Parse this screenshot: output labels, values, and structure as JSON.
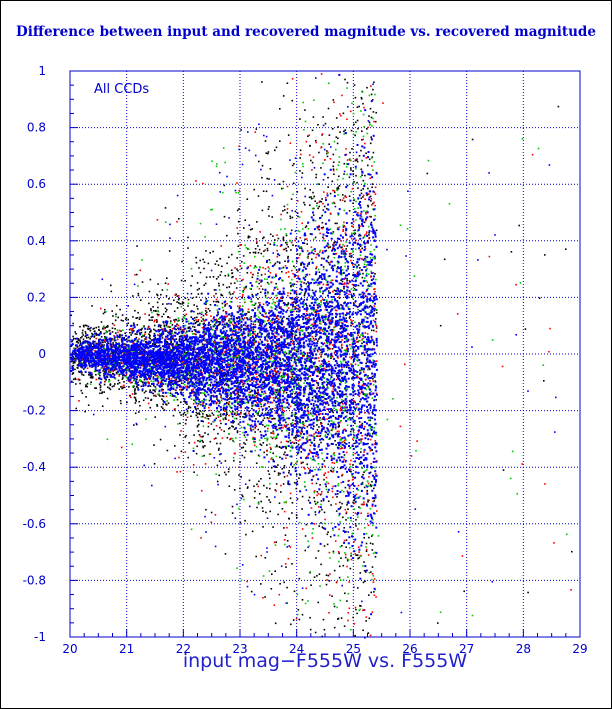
{
  "page": {
    "title": "Difference between input and recovered magnitude vs. recovered magnitude"
  },
  "chart_data": {
    "type": "scatter",
    "title": "Difference between input and recovered magnitude vs. recovered magnitude",
    "xlabel": "input mag−F555W vs. F555W",
    "ylabel": "",
    "annotation": "All CCDs",
    "xlim": [
      20,
      29
    ],
    "ylim": [
      -1,
      1
    ],
    "x_ticks": [
      20,
      21,
      22,
      23,
      24,
      25,
      26,
      27,
      28,
      29
    ],
    "y_ticks": [
      -1,
      -0.8,
      -0.6,
      -0.4,
      -0.2,
      0,
      0.2,
      0.4,
      0.6,
      0.8,
      1
    ],
    "grid": true,
    "grid_style": "dotted",
    "colors": {
      "axis": "#0000cc",
      "grid": "#0000cc",
      "title": "#0000cc"
    },
    "series": [
      {
        "color": "#000000",
        "description_points": "broad cloud, scatter increasing with magnitude"
      },
      {
        "color": "#ff0000"
      },
      {
        "color": "#00cc00"
      },
      {
        "color": "#0000ff"
      }
    ],
    "approximate_trend": {
      "x": [
        20.0,
        21.0,
        22.0,
        23.0,
        24.0,
        24.5,
        25.0,
        25.4
      ],
      "center_y": [
        0.0,
        -0.01,
        -0.02,
        -0.03,
        -0.02,
        -0.01,
        0.0,
        0.0
      ],
      "spread_y": [
        0.03,
        0.05,
        0.08,
        0.13,
        0.22,
        0.3,
        0.4,
        0.45
      ]
    },
    "recovery_limit_x": 25.4
  }
}
